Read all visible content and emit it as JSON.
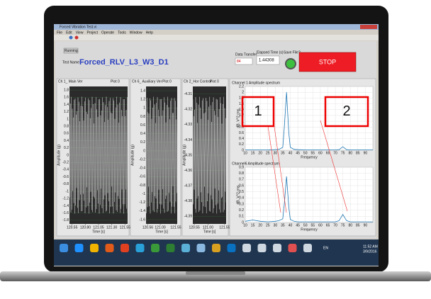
{
  "window": {
    "title": "Forced Vibration Test.vi",
    "menu": [
      "File",
      "Edit",
      "View",
      "Project",
      "Operate",
      "Tools",
      "Window",
      "Help"
    ]
  },
  "header": {
    "running": "Running",
    "test_name_label": "Test Name",
    "test_name": "Forced_RLV_L3_W3_D1",
    "data_transfer_label": "Data Transfer",
    "data_transfer": "84",
    "elapsed_label": "Elapsed Time (s)",
    "elapsed": "1.44308",
    "save_label": "Save File?",
    "stop": "STOP"
  },
  "time_plots": [
    {
      "title": "Ch 1_ Main Ver",
      "plot_label": "Plot 0",
      "y_label": "Amplitude (g)",
      "x_label": "Time [s]",
      "ylim": [
        -1.9,
        1.9
      ],
      "yticks": [
        1.8,
        1.6,
        1.4,
        1.2,
        1,
        0.8,
        0.6,
        0.4,
        0.2,
        0,
        -0.2,
        -0.4,
        -0.6,
        -0.8,
        -1,
        -1.2,
        -1.4,
        -1.6,
        -1.8
      ],
      "xlim": [
        120.5,
        121.6
      ],
      "xticks": [
        120.55,
        {
          "value": 120.8,
          "label": "120.80"
        },
        121.05,
        {
          "value": 121.3,
          "label": "121.30"
        },
        121.55
      ]
    },
    {
      "title": "Ch 6_ Auxiliary Ver",
      "plot_label": "Plot 0",
      "y_label": "Amplitude (g)",
      "x_label": "Time [s]",
      "ylim": [
        -1.7,
        1.5
      ],
      "yticks": [
        1.4,
        1.2,
        1,
        0.8,
        0.6,
        0.4,
        0.2,
        0,
        -0.2,
        -0.4,
        -0.6,
        -0.8,
        -1,
        -1.2,
        -1.4,
        -1.6
      ],
      "xlim": [
        120.5,
        121.6
      ],
      "xticks": [
        120.56,
        {
          "value": 121,
          "label": "121.00"
        },
        121.55
      ]
    },
    {
      "title": "Ch 2_Hor Control",
      "plot_label": "Plot 0",
      "y_label": "Amplitude (g)",
      "x_label": "Time [s]",
      "ylim": [
        -4.395,
        -4.305
      ],
      "yticks": [
        -4.31,
        -4.32,
        -4.33,
        -4.34,
        -4.35,
        -4.36,
        -4.37,
        -4.38,
        -4.39
      ],
      "xlim": [
        120.5,
        121.6
      ],
      "xticks": [
        120.55,
        {
          "value": 121,
          "label": "121.00"
        },
        121.55
      ]
    }
  ],
  "spectra": [
    {
      "title": "Channel 1 Amplitude spectrum",
      "y_label": "dB, V^2 rms",
      "x_label": "Frequency",
      "color": "#1f77b4",
      "xlim": [
        10,
        95
      ],
      "ylim": [
        0,
        2.2
      ],
      "yticks": [
        0,
        0.2,
        0.4,
        0.6,
        0.8,
        1,
        1.2,
        1.4,
        1.6,
        1.8,
        2,
        2.2
      ],
      "xticks": [
        10,
        15,
        20,
        25,
        30,
        35,
        40,
        45,
        50,
        55,
        60,
        65,
        70,
        75,
        80,
        85,
        90
      ],
      "x": [
        10,
        15,
        20,
        25,
        30,
        32.5,
        35,
        36,
        37.5,
        39,
        40,
        42.5,
        45,
        50,
        55,
        60,
        65,
        70,
        72.5,
        75,
        77.5,
        80,
        85,
        90,
        95
      ],
      "values": [
        0.01,
        0.01,
        0.01,
        0.01,
        0.02,
        0.03,
        0.1,
        0.8,
        2,
        0.6,
        0.1,
        0.03,
        0.02,
        0.01,
        0.01,
        0.01,
        0.01,
        0.01,
        0.02,
        0.12,
        0.02,
        0.01,
        0.01,
        0.01,
        0.01
      ]
    },
    {
      "title": "Channel6 Amplitude spectrum",
      "y_label": "dB, V^2 rms",
      "x_label": "Frequency",
      "color": "#1f77b4",
      "xlim": [
        10,
        95
      ],
      "ylim": [
        0,
        0.9
      ],
      "yticks": [
        0,
        0.1,
        0.2,
        0.3,
        0.4,
        0.5,
        0.6,
        0.7,
        0.8,
        0.9
      ],
      "xticks": [
        10,
        15,
        20,
        25,
        30,
        35,
        40,
        45,
        50,
        55,
        60,
        65,
        70,
        75,
        80,
        85,
        90
      ],
      "x": [
        10,
        15,
        20,
        25,
        30,
        32.5,
        35,
        36,
        37.5,
        39,
        40,
        42.5,
        45,
        50,
        55,
        60,
        65,
        70,
        72.5,
        75,
        77.5,
        80,
        85,
        90,
        95
      ],
      "values": [
        0.02,
        0.04,
        0.02,
        0.01,
        0.02,
        0.03,
        0.06,
        0.3,
        0.75,
        0.25,
        0.05,
        0.02,
        0.01,
        0.01,
        0.01,
        0.01,
        0.01,
        0.01,
        0.03,
        0.13,
        0.03,
        0.01,
        0.01,
        0.01,
        0.01
      ]
    }
  ],
  "annotations": [
    "1",
    "2"
  ],
  "taskbar": {
    "lang": "EN",
    "time": "11:52 AM",
    "date": "3/9/2016"
  }
}
